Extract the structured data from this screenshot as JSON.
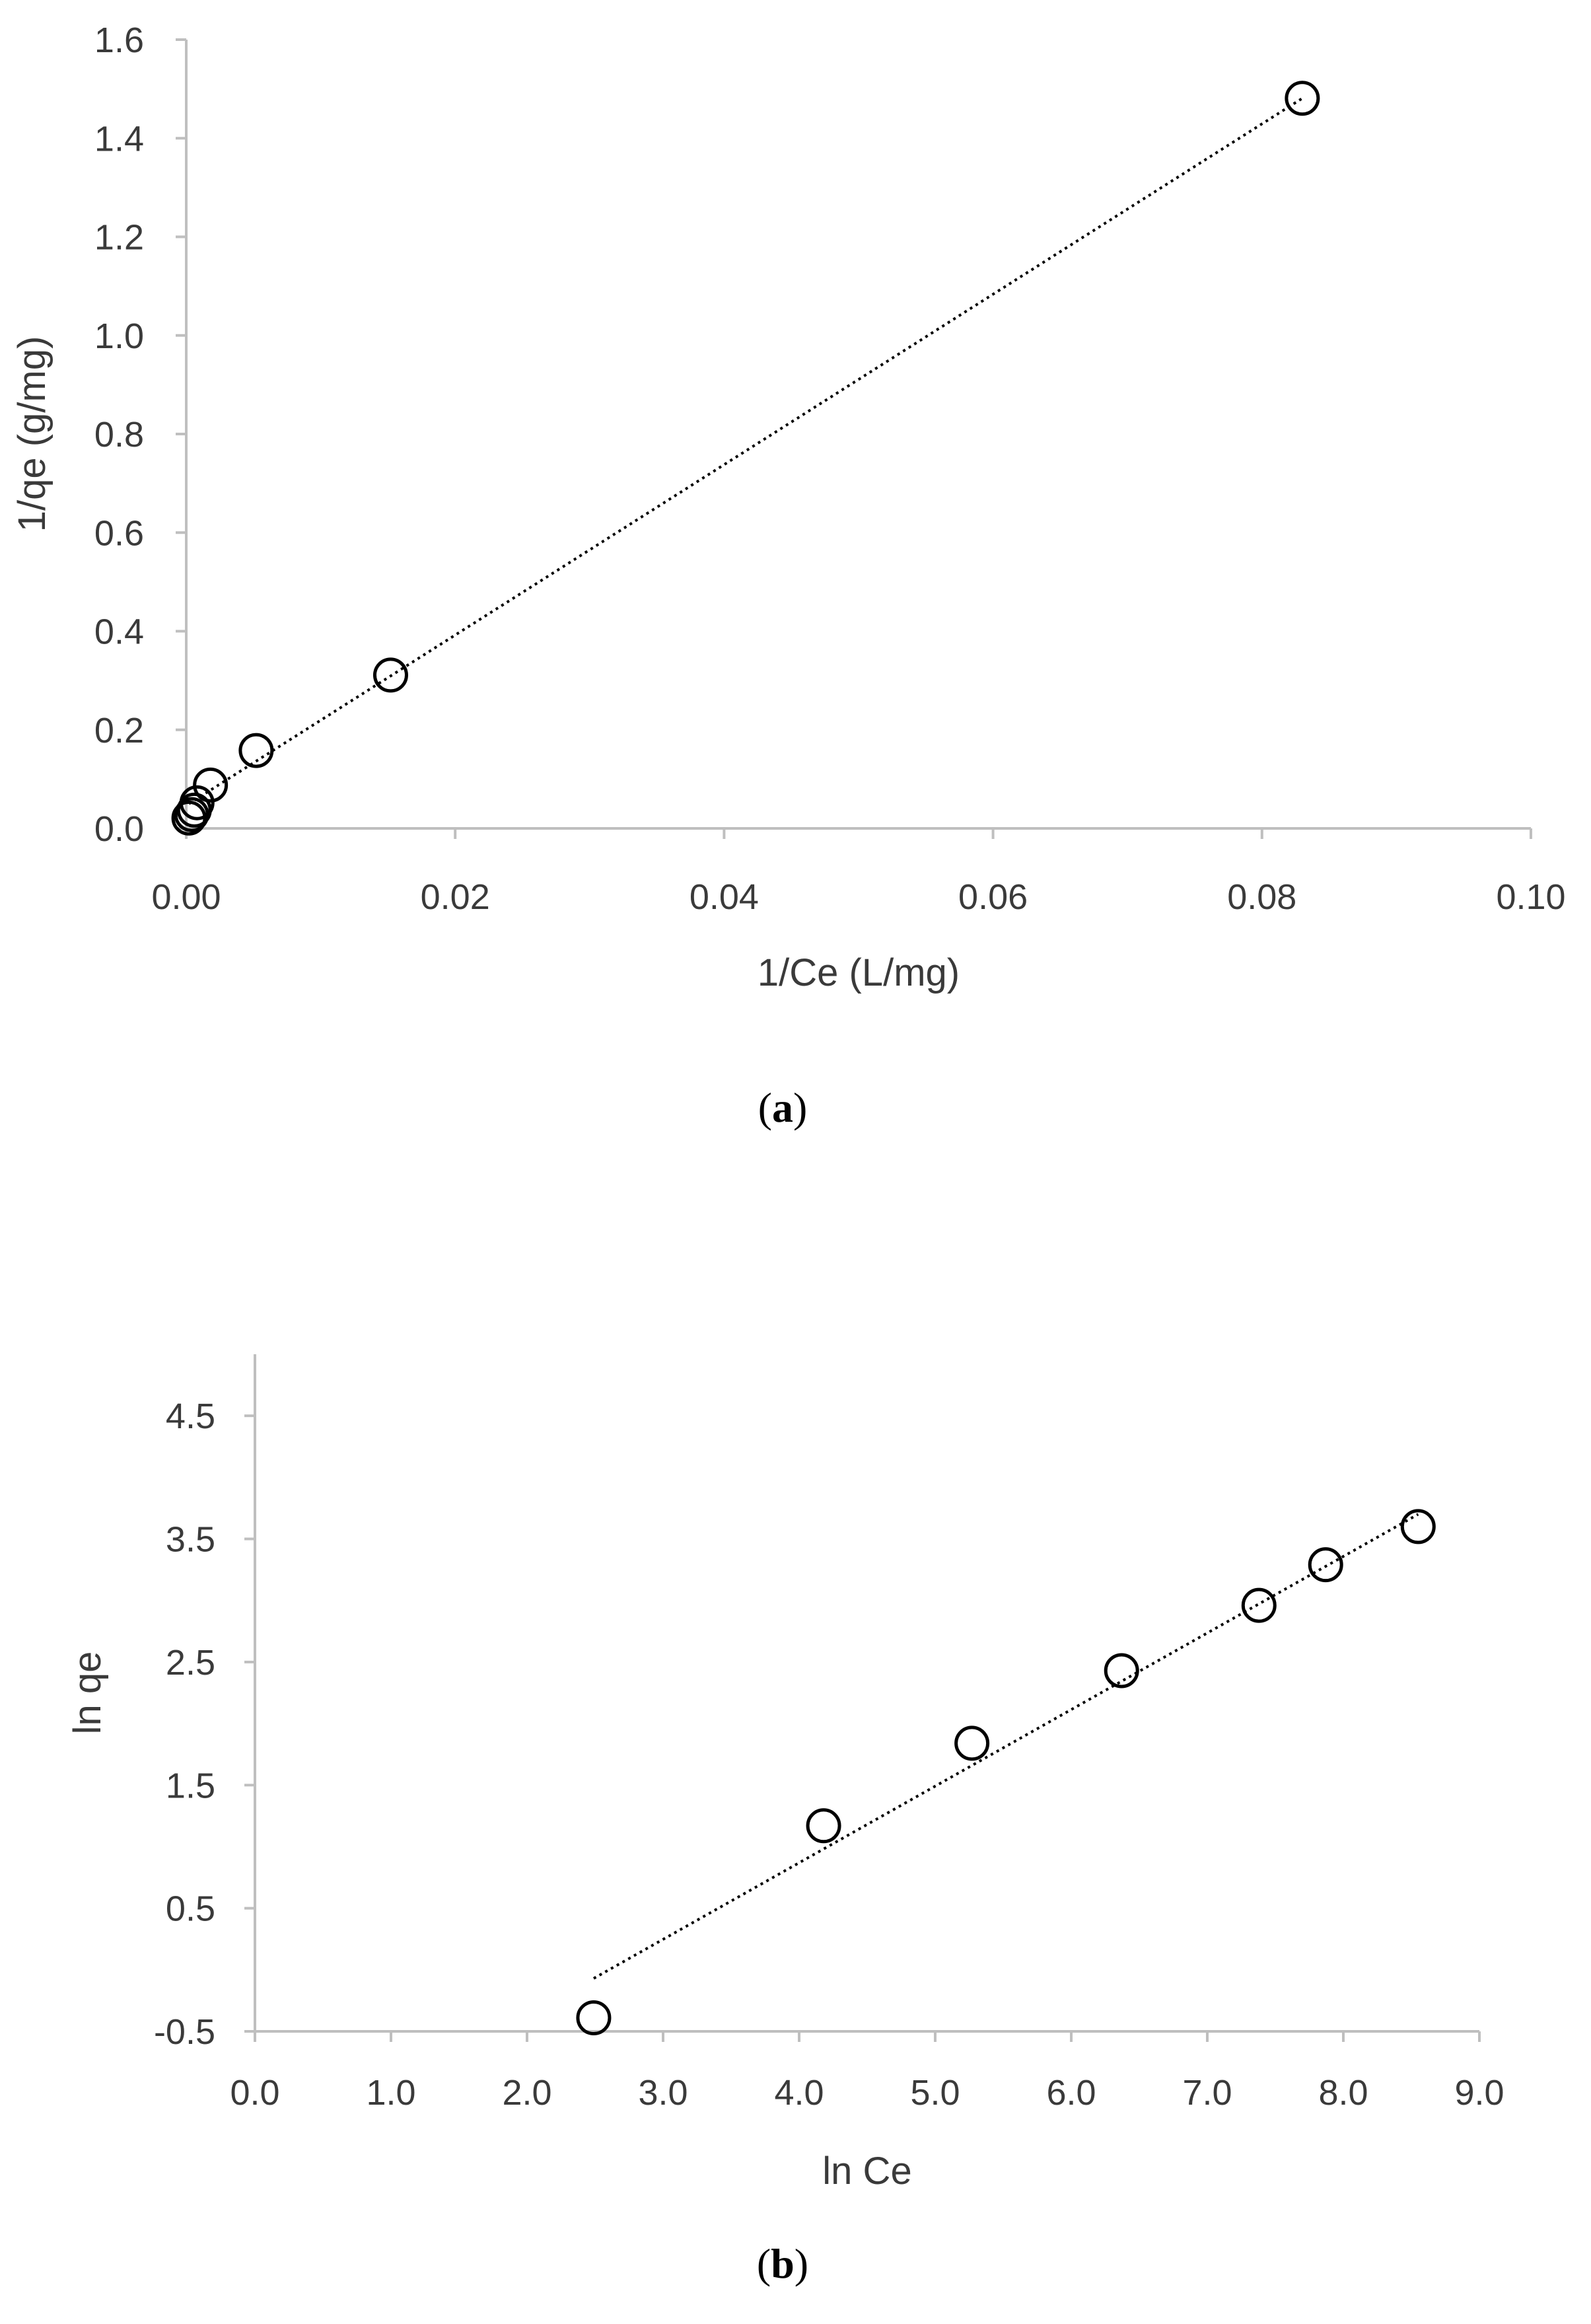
{
  "chart_data": [
    {
      "type": "scatter",
      "panel_label": "a",
      "title": "",
      "xlabel": "1/Ce (L/mg)",
      "ylabel": "1/qe (g/mg)",
      "xlim": [
        0,
        0.1
      ],
      "ylim": [
        0,
        1.6
      ],
      "x_ticks": [
        "0.00",
        "0.02",
        "0.04",
        "0.06",
        "0.08",
        "0.10"
      ],
      "y_ticks": [
        "0.0",
        "0.2",
        "0.4",
        "0.6",
        "0.8",
        "1.0",
        "1.2",
        "1.4",
        "1.6"
      ],
      "grid": false,
      "marker": "open-circle",
      "points": [
        {
          "x": 0.0002,
          "y": 0.021
        },
        {
          "x": 0.0004,
          "y": 0.028
        },
        {
          "x": 0.0006,
          "y": 0.037
        },
        {
          "x": 0.0008,
          "y": 0.052
        },
        {
          "x": 0.0018,
          "y": 0.088
        },
        {
          "x": 0.0052,
          "y": 0.158
        },
        {
          "x": 0.0152,
          "y": 0.311
        },
        {
          "x": 0.083,
          "y": 1.481
        }
      ],
      "trendline": {
        "style": "dotted",
        "from": {
          "x": 0.0002,
          "y": 0.05
        },
        "to": {
          "x": 0.083,
          "y": 1.481
        }
      }
    },
    {
      "type": "scatter",
      "panel_label": "b",
      "title": "",
      "xlabel": "ln Ce",
      "ylabel": "ln qe",
      "xlim": [
        0,
        9.0
      ],
      "ylim": [
        -0.5,
        5.0
      ],
      "x_ticks": [
        "0.0",
        "1.0",
        "2.0",
        "3.0",
        "4.0",
        "5.0",
        "6.0",
        "7.0",
        "8.0",
        "9.0"
      ],
      "y_ticks": [
        "-0.5",
        "0.5",
        "1.5",
        "2.5",
        "3.5",
        "4.5"
      ],
      "grid": false,
      "marker": "open-circle",
      "points": [
        {
          "x": 2.49,
          "y": -0.39
        },
        {
          "x": 4.18,
          "y": 1.17
        },
        {
          "x": 5.27,
          "y": 1.84
        },
        {
          "x": 6.37,
          "y": 2.43
        },
        {
          "x": 7.38,
          "y": 2.96
        },
        {
          "x": 7.87,
          "y": 3.29
        },
        {
          "x": 8.55,
          "y": 3.6
        }
      ],
      "trendline": {
        "style": "dotted",
        "from": {
          "x": 2.49,
          "y": -0.07
        },
        "to": {
          "x": 8.55,
          "y": 3.7
        }
      }
    }
  ]
}
